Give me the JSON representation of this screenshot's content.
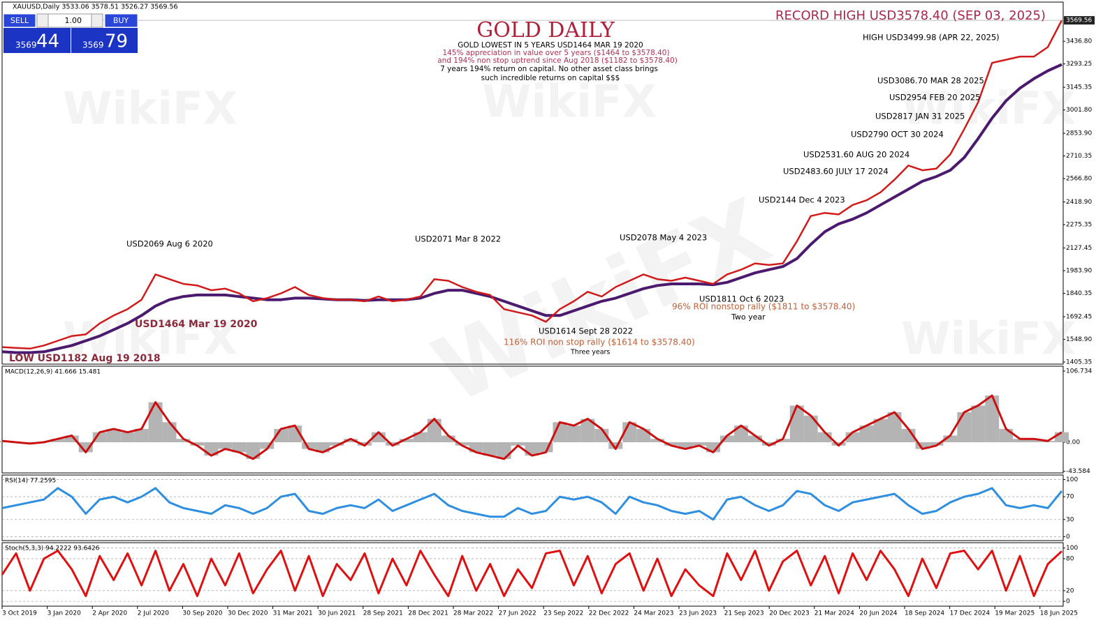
{
  "header": "XAUUSD,Daily  3533.06 3578.51 3526.27 3569.56",
  "trade_panel": {
    "sell": "SELL",
    "lots": "1.00",
    "buy": "BUY",
    "bid_big": "3569",
    "bid_small": "44",
    "ask_big": "3569",
    "ask_small": "79"
  },
  "watermark": "WikiFX",
  "date_labels": [
    "3 Oct 2019",
    "3 Jan 2020",
    "2 Apr 2020",
    "2 Jul 2020",
    "30 Sep 2020",
    "30 Dec 2020",
    "31 Mar 2021",
    "30 Jun 2021",
    "28 Sep 2021",
    "28 Dec 2021",
    "28 Mar 2022",
    "27 Jun 2022",
    "23 Sep 2022",
    "22 Dec 2022",
    "24 Mar 2023",
    "23 Jun 2023",
    "21 Sep 2023",
    "20 Dec 2023",
    "21 Mar 2024",
    "20 Jun 2024",
    "18 Sep 2024",
    "17 Dec 2024",
    "19 Mar 2025",
    "18 Jun 2025"
  ],
  "chart_data": [
    {
      "type": "line",
      "ylim": [
        1392,
        3685
      ],
      "yticks": [
        {
          "value": 3436.8,
          "label": "3436.80"
        },
        3293.25,
        3145.35,
        {
          "value": 3001.8,
          "label": "3001.80"
        },
        {
          "value": 2853.9,
          "label": "2853.90"
        },
        2710.35,
        {
          "value": 2566.8,
          "label": "2566.80"
        },
        {
          "value": 2418.9,
          "label": "2418.90"
        },
        2275.35,
        2127.45,
        {
          "value": 1983.9,
          "label": "1983.90"
        },
        1840.35,
        1692.45,
        {
          "value": 1548.9,
          "label": "1548.90"
        },
        1405.35
      ],
      "current_price": 3569.56,
      "series": [
        {
          "color": "#4b1a6e",
          "values": [
            1470,
            1465,
            1465,
            1470,
            1490,
            1510,
            1540,
            1570,
            1610,
            1650,
            1700,
            1760,
            1800,
            1820,
            1830,
            1830,
            1830,
            1820,
            1810,
            1800,
            1800,
            1810,
            1810,
            1805,
            1800,
            1800,
            1795,
            1800,
            1800,
            1800,
            1810,
            1840,
            1860,
            1860,
            1840,
            1820,
            1790,
            1760,
            1730,
            1700,
            1700,
            1730,
            1760,
            1790,
            1810,
            1840,
            1870,
            1890,
            1900,
            1900,
            1900,
            1895,
            1910,
            1940,
            1970,
            1990,
            2010,
            2060,
            2150,
            2230,
            2280,
            2310,
            2350,
            2400,
            2450,
            2500,
            2550,
            2580,
            2620,
            2700,
            2820,
            2950,
            3060,
            3140,
            3200,
            3250,
            3290
          ]
        },
        {
          "color": "#d11a1a",
          "values": [
            1500,
            1495,
            1490,
            1510,
            1540,
            1570,
            1580,
            1650,
            1700,
            1740,
            1800,
            1960,
            1930,
            1900,
            1890,
            1860,
            1870,
            1840,
            1790,
            1810,
            1840,
            1880,
            1830,
            1810,
            1800,
            1800,
            1790,
            1820,
            1790,
            1800,
            1820,
            1930,
            1920,
            1880,
            1850,
            1830,
            1740,
            1720,
            1700,
            1660,
            1740,
            1790,
            1850,
            1820,
            1880,
            1920,
            1960,
            1930,
            1920,
            1940,
            1920,
            1900,
            1960,
            1990,
            2030,
            2020,
            2030,
            2170,
            2330,
            2350,
            2340,
            2400,
            2430,
            2480,
            2560,
            2650,
            2620,
            2630,
            2720,
            2880,
            3050,
            3300,
            3320,
            3340,
            3340,
            3400,
            3570
          ]
        }
      ],
      "annotations": [
        "RECORD HIGH USD3578.40  (SEP 03, 2025)",
        "GOLD DAILY",
        "GOLD LOWEST IN 5 YEARS USD1464 MAR 19 2020",
        "145% appreciation in value over 5 years ($1464 to $3578.40)",
        "and 194% non stop uptrend since Aug 2018 ($1182 to $3578.40)",
        "7 years 194% return on capital. No other asset class brings",
        "such incredible returns on capital $$$",
        "HIGH USD3499.98  (APR 22, 2025)",
        "USD3086.70 MAR 28 2025",
        "USD2954 FEB 20 2025",
        "USD2817 JAN 31 2025",
        "USD2790 OCT 30 2024",
        "USD2531.60 AUG 20 2024",
        "USD2483.60 JULY 17 2024",
        "USD2144 Dec 4 2023",
        "USD2078 May 4 2023",
        "USD2071 Mar 8 2022",
        "USD2069 Aug 6 2020",
        "USD1811 Oct 6 2023",
        "96% ROI nonstop rally ($1811 to $3578.40)",
        "Two year",
        "USD1614 Sept 28 2022",
        "116% ROI non stop rally ($1614 to $3578.40)",
        "Three years",
        "USD1464 Mar 19 2020",
        "LOW USD1182 Aug 19 2018"
      ]
    },
    {
      "type": "bar",
      "title": "MACD(12,26,9) 41.666 15.481",
      "ylim": [
        -46,
        114
      ],
      "yticks": [
        106.734,
        {
          "value": 0,
          "label": "0.00"
        },
        -43.584
      ],
      "color": "#b4b4b4",
      "line_color": "#cc1010",
      "values": [
        2,
        0,
        -2,
        0,
        5,
        10,
        -15,
        15,
        20,
        15,
        20,
        60,
        30,
        5,
        -5,
        -20,
        -10,
        -15,
        -25,
        -10,
        20,
        25,
        -10,
        -15,
        -5,
        5,
        -5,
        15,
        -5,
        5,
        15,
        35,
        10,
        -5,
        -15,
        -20,
        -25,
        -5,
        -20,
        -15,
        30,
        25,
        35,
        20,
        -10,
        30,
        20,
        5,
        -5,
        -10,
        -5,
        -15,
        10,
        25,
        10,
        -5,
        5,
        55,
        40,
        15,
        -5,
        15,
        25,
        35,
        45,
        20,
        -10,
        -5,
        10,
        45,
        55,
        70,
        20,
        5,
        5,
        2,
        15
      ]
    },
    {
      "type": "line",
      "title": "RSI(14) 77.2595",
      "ylim": [
        -7,
        108
      ],
      "yticks": [
        100,
        70,
        30,
        0
      ],
      "grid": true,
      "color": "#2e8ee0",
      "values": [
        50,
        55,
        60,
        65,
        85,
        70,
        40,
        65,
        70,
        60,
        70,
        85,
        60,
        50,
        45,
        40,
        55,
        50,
        40,
        50,
        70,
        75,
        45,
        40,
        50,
        55,
        50,
        65,
        45,
        55,
        65,
        75,
        55,
        45,
        40,
        35,
        35,
        50,
        40,
        45,
        70,
        65,
        70,
        60,
        40,
        70,
        60,
        55,
        45,
        40,
        45,
        30,
        65,
        70,
        55,
        45,
        55,
        80,
        75,
        55,
        45,
        60,
        65,
        70,
        75,
        55,
        40,
        45,
        60,
        70,
        75,
        85,
        55,
        50,
        55,
        50,
        80
      ]
    },
    {
      "type": "line",
      "title": "Stoch(5,3,3) 94.2222 93.6426",
      "ylim": [
        -9,
        110
      ],
      "yticks": [
        100,
        80,
        20,
        0
      ],
      "grid": true,
      "color": "#e01010",
      "values": [
        50,
        90,
        20,
        80,
        95,
        60,
        10,
        85,
        40,
        90,
        30,
        95,
        20,
        70,
        10,
        80,
        30,
        90,
        15,
        60,
        95,
        20,
        85,
        10,
        70,
        40,
        90,
        15,
        80,
        30,
        95,
        50,
        10,
        85,
        20,
        70,
        10,
        60,
        25,
        90,
        95,
        30,
        85,
        15,
        70,
        90,
        20,
        80,
        10,
        60,
        30,
        10,
        90,
        40,
        95,
        20,
        75,
        95,
        30,
        85,
        15,
        90,
        40,
        95,
        60,
        10,
        80,
        25,
        90,
        95,
        60,
        95,
        20,
        85,
        10,
        70,
        94
      ]
    }
  ]
}
